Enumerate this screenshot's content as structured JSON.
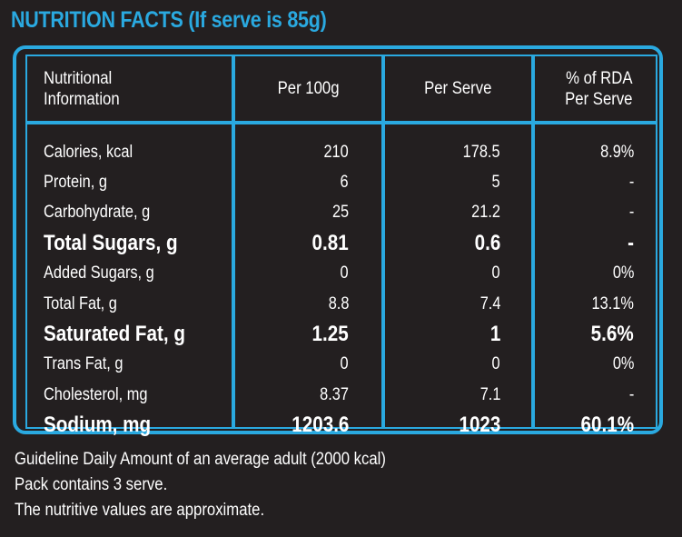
{
  "title": "NUTRITION FACTS (If serve is 85g)",
  "colors": {
    "accent": "#2aa9e0",
    "background": "#231f20",
    "text": "#ffffff"
  },
  "headers": [
    [
      "Nutritional",
      "Information"
    ],
    [
      "Per 100g"
    ],
    [
      "Per Serve"
    ],
    [
      "% of RDA",
      "Per Serve"
    ]
  ],
  "rows": [
    {
      "name": "Calories, kcal",
      "per100": "210",
      "perServe": "178.5",
      "rda": "8.9%",
      "bold": false
    },
    {
      "name": "Protein, g",
      "per100": "6",
      "perServe": "5",
      "rda": "-",
      "bold": false
    },
    {
      "name": "Carbohydrate, g",
      "per100": "25",
      "perServe": "21.2",
      "rda": "-",
      "bold": false
    },
    {
      "name": "Total Sugars, g",
      "per100": "0.81",
      "perServe": "0.6",
      "rda": "-",
      "bold": true
    },
    {
      "name": "Added Sugars, g",
      "per100": "0",
      "perServe": "0",
      "rda": "0%",
      "bold": false
    },
    {
      "name": "Total Fat, g",
      "per100": "8.8",
      "perServe": "7.4",
      "rda": "13.1%",
      "bold": false
    },
    {
      "name": "Saturated Fat, g",
      "per100": "1.25",
      "perServe": "1",
      "rda": "5.6%",
      "bold": true
    },
    {
      "name": "Trans Fat, g",
      "per100": "0",
      "perServe": "0",
      "rda": "0%",
      "bold": false
    },
    {
      "name": "Cholesterol, mg",
      "per100": "8.37",
      "perServe": "7.1",
      "rda": "-",
      "bold": false
    },
    {
      "name": "Sodium, mg",
      "per100": "1203.6",
      "perServe": "1023",
      "rda": "60.1%",
      "bold": true
    }
  ],
  "notes": [
    "Guideline Daily Amount of an average adult (2000 kcal)",
    "Pack contains 3 serve.",
    "The nutritive values are approximate."
  ]
}
